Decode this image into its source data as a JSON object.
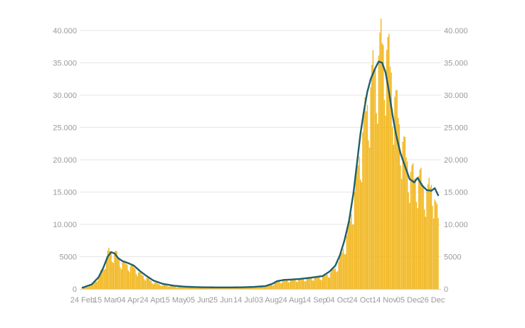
{
  "chart_data": {
    "type": "bar",
    "title": "",
    "xlabel": "",
    "ylabel": "",
    "ylim": [
      0,
      40000
    ],
    "grid": true,
    "y_ticks": [
      {
        "value": 0,
        "label": "0"
      },
      {
        "value": 5000,
        "label": "5000"
      },
      {
        "value": 10000,
        "label": "10.000"
      },
      {
        "value": 15000,
        "label": "15.000"
      },
      {
        "value": 20000,
        "label": "20.000"
      },
      {
        "value": 25000,
        "label": "25.000"
      },
      {
        "value": 30000,
        "label": "30.000"
      },
      {
        "value": 35000,
        "label": "35.000"
      },
      {
        "value": 40000,
        "label": "40.000"
      }
    ],
    "x_tick_labels": [
      "24 Feb",
      "15 Mar",
      "04 Apr",
      "24 Apr",
      "15 May",
      "05 Jun",
      "25 Jun",
      "14 Jul",
      "03 Aug",
      "24 Aug",
      "14 Sep",
      "04 Oct",
      "24 Oct",
      "14 Nov",
      "05 Dec",
      "26 Dec"
    ],
    "x_tick_positions": [
      0,
      20,
      40,
      60,
      80,
      101,
      121,
      141,
      161,
      182,
      203,
      223,
      243,
      264,
      285,
      306
    ],
    "bar_color": "#f2b822",
    "line_color": "#1f5f6e",
    "day_count": 312,
    "bar_anchors": [
      [
        0,
        100
      ],
      [
        10,
        900
      ],
      [
        15,
        2200
      ],
      [
        19,
        3800
      ],
      [
        22,
        5500
      ],
      [
        24,
        5900
      ],
      [
        26,
        5400
      ],
      [
        28,
        5800
      ],
      [
        30,
        5200
      ],
      [
        33,
        4300
      ],
      [
        36,
        4000
      ],
      [
        40,
        3700
      ],
      [
        45,
        3300
      ],
      [
        50,
        2400
      ],
      [
        56,
        1700
      ],
      [
        62,
        1000
      ],
      [
        70,
        600
      ],
      [
        80,
        380
      ],
      [
        90,
        300
      ],
      [
        100,
        260
      ],
      [
        110,
        230
      ],
      [
        120,
        220
      ],
      [
        130,
        200
      ],
      [
        140,
        220
      ],
      [
        150,
        280
      ],
      [
        160,
        420
      ],
      [
        166,
        700
      ],
      [
        170,
        1100
      ],
      [
        176,
        1300
      ],
      [
        182,
        1400
      ],
      [
        190,
        1500
      ],
      [
        200,
        1700
      ],
      [
        210,
        1900
      ],
      [
        216,
        2400
      ],
      [
        222,
        3400
      ],
      [
        226,
        5000
      ],
      [
        230,
        7500
      ],
      [
        234,
        10500
      ],
      [
        238,
        15000
      ],
      [
        242,
        20500
      ],
      [
        246,
        25500
      ],
      [
        250,
        29500
      ],
      [
        254,
        33000
      ],
      [
        258,
        35500
      ],
      [
        262,
        38000
      ],
      [
        266,
        37000
      ],
      [
        270,
        33500
      ],
      [
        274,
        28500
      ],
      [
        278,
        24500
      ],
      [
        282,
        21000
      ],
      [
        286,
        18500
      ],
      [
        290,
        17000
      ],
      [
        294,
        17500
      ],
      [
        298,
        16000
      ],
      [
        302,
        15000
      ],
      [
        306,
        16500
      ],
      [
        309,
        12500
      ],
      [
        311,
        11000
      ]
    ],
    "line_anchors": [
      [
        0,
        200
      ],
      [
        8,
        700
      ],
      [
        14,
        1800
      ],
      [
        18,
        3200
      ],
      [
        22,
        5000
      ],
      [
        25,
        5700
      ],
      [
        28,
        5500
      ],
      [
        31,
        4800
      ],
      [
        35,
        4300
      ],
      [
        40,
        4000
      ],
      [
        45,
        3600
      ],
      [
        50,
        2800
      ],
      [
        56,
        2000
      ],
      [
        62,
        1300
      ],
      [
        70,
        800
      ],
      [
        80,
        500
      ],
      [
        90,
        350
      ],
      [
        100,
        280
      ],
      [
        110,
        250
      ],
      [
        120,
        240
      ],
      [
        130,
        240
      ],
      [
        140,
        260
      ],
      [
        150,
        320
      ],
      [
        160,
        450
      ],
      [
        166,
        800
      ],
      [
        170,
        1200
      ],
      [
        176,
        1400
      ],
      [
        182,
        1450
      ],
      [
        190,
        1550
      ],
      [
        200,
        1750
      ],
      [
        210,
        2000
      ],
      [
        216,
        2700
      ],
      [
        221,
        3600
      ],
      [
        225,
        5200
      ],
      [
        229,
        7500
      ],
      [
        233,
        10500
      ],
      [
        237,
        15000
      ],
      [
        240,
        19500
      ],
      [
        243,
        24000
      ],
      [
        246,
        27500
      ],
      [
        249,
        30500
      ],
      [
        252,
        32500
      ],
      [
        256,
        34200
      ],
      [
        259,
        35200
      ],
      [
        262,
        35000
      ],
      [
        265,
        33500
      ],
      [
        268,
        30500
      ],
      [
        271,
        27000
      ],
      [
        274,
        24000
      ],
      [
        278,
        21000
      ],
      [
        282,
        19000
      ],
      [
        286,
        17000
      ],
      [
        290,
        16500
      ],
      [
        293,
        17200
      ],
      [
        297,
        16000
      ],
      [
        301,
        15300
      ],
      [
        305,
        15200
      ],
      [
        308,
        15600
      ],
      [
        311,
        14500
      ]
    ]
  }
}
